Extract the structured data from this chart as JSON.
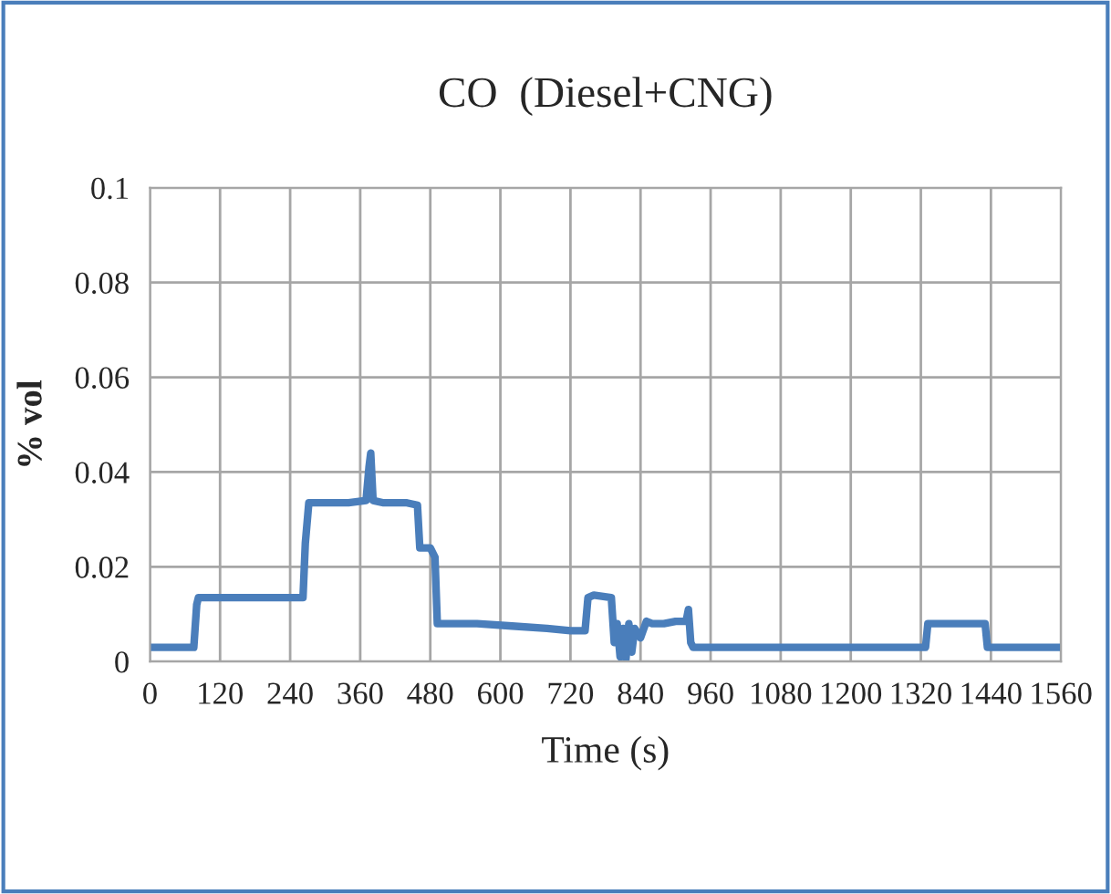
{
  "chart_data": {
    "type": "line",
    "title": "CO  (Diesel+CNG)",
    "xlabel": "Time (s)",
    "ylabel": "% vol",
    "x": [
      0,
      40,
      75,
      80,
      83,
      150,
      200,
      262,
      266,
      272,
      300,
      340,
      370,
      375,
      378,
      382,
      400,
      440,
      458,
      462,
      480,
      488,
      492,
      500,
      560,
      620,
      680,
      720,
      745,
      750,
      760,
      790,
      795,
      800,
      805,
      810,
      815,
      820,
      825,
      830,
      840,
      850,
      860,
      880,
      900,
      918,
      922,
      926,
      930,
      1000,
      1100,
      1200,
      1300,
      1328,
      1332,
      1360,
      1400,
      1430,
      1434,
      1480,
      1560
    ],
    "series": [
      {
        "color": "#4a7ebb",
        "values": [
          0.003,
          0.003,
          0.003,
          0.012,
          0.0135,
          0.0135,
          0.0135,
          0.0135,
          0.025,
          0.0335,
          0.0335,
          0.0335,
          0.034,
          0.041,
          0.044,
          0.034,
          0.0335,
          0.0335,
          0.033,
          0.024,
          0.024,
          0.022,
          0.008,
          0.008,
          0.008,
          0.0075,
          0.007,
          0.0065,
          0.0065,
          0.0135,
          0.014,
          0.0135,
          0.004,
          0.008,
          0.001,
          0.007,
          0.0005,
          0.008,
          0.002,
          0.007,
          0.005,
          0.0085,
          0.008,
          0.008,
          0.0085,
          0.0085,
          0.011,
          0.004,
          0.003,
          0.003,
          0.003,
          0.003,
          0.003,
          0.003,
          0.008,
          0.008,
          0.008,
          0.008,
          0.003,
          0.003,
          0.003
        ]
      }
    ],
    "xlim": [
      0,
      1560
    ],
    "xticks": [
      0,
      120,
      240,
      360,
      480,
      600,
      720,
      840,
      960,
      1080,
      1200,
      1320,
      1440,
      1560
    ],
    "ylim": [
      0,
      0.1
    ],
    "yticks": [
      {
        "value": 0,
        "label": "0"
      },
      0.02,
      0.04,
      0.06,
      0.08,
      0.1
    ],
    "grid": true
  }
}
